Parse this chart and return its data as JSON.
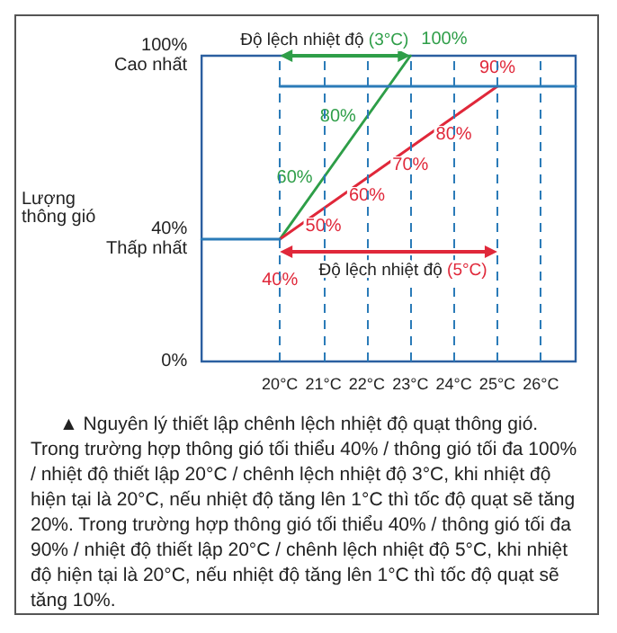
{
  "chart_data": {
    "type": "line",
    "ylabel": "Lượng\nthông gió",
    "xlim": [
      18.2,
      26.8
    ],
    "xticks": [
      {
        "value": 20,
        "label": "20°C"
      },
      {
        "value": 21,
        "label": "21°C"
      },
      {
        "value": 22,
        "label": "22°C"
      },
      {
        "value": 23,
        "label": "23°C"
      },
      {
        "value": 24,
        "label": "24°C"
      },
      {
        "value": 25,
        "label": "25°C"
      },
      {
        "value": 26,
        "label": "26°C"
      }
    ],
    "ylim": [
      0,
      100
    ],
    "yticks": [
      {
        "value": 0,
        "label": "0%"
      },
      {
        "value": 40,
        "label": "40%\nThấp nhất"
      },
      {
        "value": 100,
        "label": "100%\nCao nhất"
      }
    ],
    "marker": "none",
    "line_style": "solid",
    "series": [
      {
        "color": "#2e9e48",
        "x": [
          20,
          21,
          22,
          23
        ],
        "values": [
          40,
          60,
          80,
          100
        ],
        "value_labels": [
          null,
          "60%",
          "80%",
          "100%"
        ]
      },
      {
        "color": "#e0283a",
        "x": [
          20,
          21,
          22,
          23,
          24,
          25
        ],
        "values": [
          40,
          50,
          60,
          70,
          80,
          90
        ],
        "value_labels": [
          "40%",
          "50%",
          "60%",
          "70%",
          "80%",
          "90%"
        ]
      },
      {
        "color": "#2b7bb8",
        "x": [
          18.2,
          20
        ],
        "values": [
          40,
          40
        ]
      },
      {
        "color": "#2b7bb8",
        "x": [
          20,
          26.8
        ],
        "values": [
          90,
          90
        ]
      }
    ],
    "ref_lines": [
      {
        "axis": "x",
        "value": 20,
        "color": "#2b7bb8",
        "line_style": "dashed"
      },
      {
        "axis": "x",
        "value": 21,
        "color": "#2b7bb8",
        "line_style": "dashed"
      },
      {
        "axis": "x",
        "value": 22,
        "color": "#2b7bb8",
        "line_style": "dashed"
      },
      {
        "axis": "x",
        "value": 23,
        "color": "#2b7bb8",
        "line_style": "dashed"
      },
      {
        "axis": "x",
        "value": 24,
        "color": "#2b7bb8",
        "line_style": "dashed"
      },
      {
        "axis": "x",
        "value": 25,
        "color": "#2b7bb8",
        "line_style": "dashed"
      },
      {
        "axis": "x",
        "value": 26,
        "color": "#2b7bb8",
        "line_style": "dashed"
      }
    ],
    "annotations": [
      "Độ lệch nhiệt độ (3°C)",
      "Độ lệch nhiệt độ (5°C)",
      "▲ Nguyên lý thiết lập chênh lệch nhiệt độ quạt thông gió. Trong trường hợp thông gió tối thiểu 40% / thông gió tối đa 100% / nhiệt độ thiết lập 20°C / chênh lệch nhiệt độ 3°C, khi nhiệt độ hiện tại là 20°C, nếu nhiệt độ tăng lên 1°C thì tốc độ quạt sẽ tăng 20%. Trong trường hợp thông gió tối thiểu 40% / thông gió tối đa 90% / nhiệt độ thiết lập 20°C / chênh lệch nhiệt độ 5°C, khi nhiệt độ hiện tại là 20°C, nếu nhiệt độ tăng lên 1°C thì tốc độ quạt sẽ tăng 10%."
    ]
  }
}
